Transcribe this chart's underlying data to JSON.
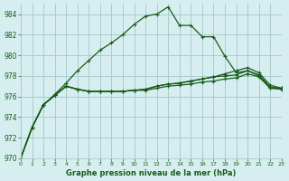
{
  "title": "Graphe pression niveau de la mer (hPa)",
  "background_color": "#d6eef0",
  "grid_color": "#aacccc",
  "line_color": "#1a5c1a",
  "xlim": [
    0,
    23
  ],
  "ylim": [
    970,
    985
  ],
  "yticks": [
    970,
    972,
    974,
    976,
    978,
    980,
    982,
    984
  ],
  "xticks": [
    0,
    1,
    2,
    3,
    4,
    5,
    6,
    7,
    8,
    9,
    10,
    11,
    12,
    13,
    14,
    15,
    16,
    17,
    18,
    19,
    20,
    21,
    22,
    23
  ],
  "series": [
    [
      970.0,
      973.0,
      975.2,
      976.2,
      977.3,
      978.5,
      979.5,
      980.5,
      981.2,
      982.0,
      983.0,
      983.8,
      984.0,
      984.7,
      982.9,
      982.9,
      981.8,
      981.8,
      979.9,
      978.3,
      978.5,
      978.0,
      976.8,
      976.8
    ],
    [
      970.0,
      973.0,
      975.2,
      976.1,
      977.0,
      976.7,
      976.5,
      976.5,
      976.5,
      976.5,
      976.6,
      976.7,
      977.0,
      977.2,
      977.3,
      977.5,
      977.7,
      977.9,
      978.2,
      978.5,
      978.8,
      978.3,
      977.1,
      976.8
    ],
    [
      970.0,
      973.0,
      975.2,
      976.1,
      977.0,
      976.7,
      976.5,
      976.5,
      976.5,
      976.5,
      976.6,
      976.7,
      977.0,
      977.2,
      977.3,
      977.5,
      977.7,
      977.9,
      978.0,
      978.1,
      978.5,
      978.1,
      976.9,
      976.8
    ],
    [
      970.0,
      973.0,
      975.2,
      976.1,
      977.0,
      976.7,
      976.5,
      976.5,
      976.5,
      976.5,
      976.6,
      976.6,
      976.8,
      977.0,
      977.1,
      977.2,
      977.4,
      977.5,
      977.7,
      977.8,
      978.2,
      977.9,
      976.8,
      976.7
    ]
  ]
}
